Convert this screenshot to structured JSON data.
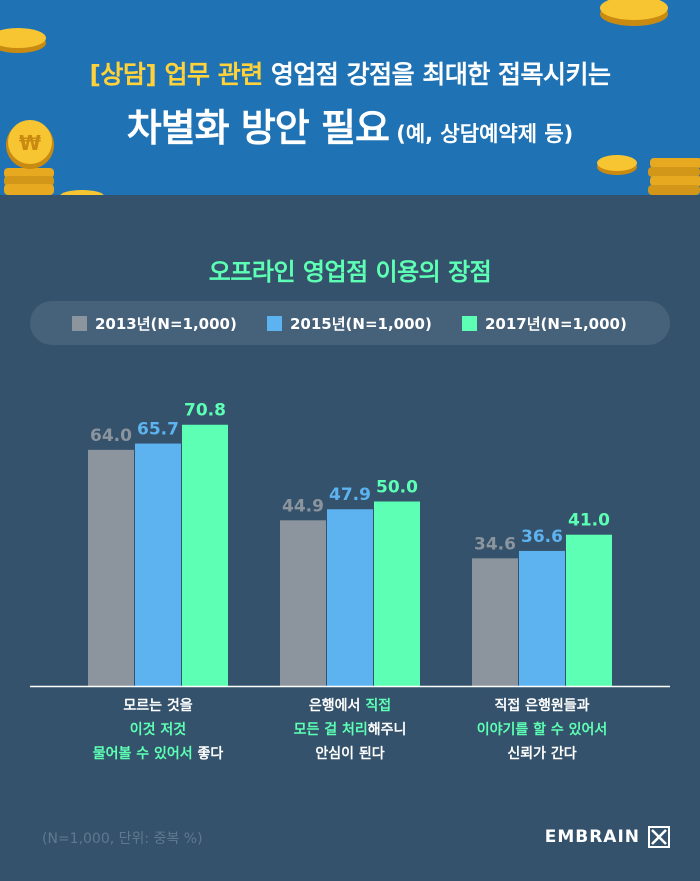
{
  "header": {
    "line1_accent": "[상담] 업무 관련",
    "line1_rest": " 영업점 강점을 최대한 접목시키는",
    "line2_big": "차별화 방안 필요",
    "line2_small": " (예, 상담예약제 등)"
  },
  "colors": {
    "s2013": "#8c959d",
    "s2015": "#5db3f0",
    "s2017": "#5dffb4",
    "green_text": "#5dffb4",
    "accent_yellow": "#ffd23a",
    "background": "#34526b",
    "header_bg": "#1f73b4"
  },
  "chart_data": {
    "type": "bar",
    "title": "오프라인 영업점 이용의 장점",
    "legend_placement": "top",
    "grid": false,
    "ylim": [
      0,
      80
    ],
    "series": [
      {
        "name": "2013년(N=1,000)",
        "values": [
          64.0,
          44.9,
          34.6
        ],
        "labels": [
          "64.0",
          "44.9",
          "34.6"
        ]
      },
      {
        "name": "2015년(N=1,000)",
        "values": [
          65.7,
          47.9,
          36.6
        ],
        "labels": [
          "65.7",
          "47.9",
          "36.6"
        ]
      },
      {
        "name": "2017년(N=1,000)",
        "values": [
          70.8,
          50.0,
          41.0
        ],
        "labels": [
          "70.8",
          "50.0",
          "41.0"
        ]
      }
    ],
    "categories": [
      {
        "lines": [
          [
            {
              "t": "모르는 것을",
              "g": false
            }
          ],
          [
            {
              "t": "이것 저것",
              "g": true
            }
          ],
          [
            {
              "t": "물어볼 수 있어서",
              "g": true
            },
            {
              "t": " 좋다",
              "g": false
            }
          ]
        ]
      },
      {
        "lines": [
          [
            {
              "t": "은행에서 ",
              "g": false
            },
            {
              "t": "직접",
              "g": true
            }
          ],
          [
            {
              "t": "모든 걸 처리",
              "g": true
            },
            {
              "t": "해주니",
              "g": false
            }
          ],
          [
            {
              "t": "안심이 된다",
              "g": false
            }
          ]
        ]
      },
      {
        "lines": [
          [
            {
              "t": "직접 은행원들과",
              "g": false
            }
          ],
          [
            {
              "t": "이야기를 할 수 있어서",
              "g": true
            }
          ],
          [
            {
              "t": "신뢰가 간다",
              "g": false
            }
          ]
        ]
      }
    ]
  },
  "footer": {
    "note": "(N=1,000, 단위: 중복 %)",
    "brand": "EMBRAIN"
  }
}
